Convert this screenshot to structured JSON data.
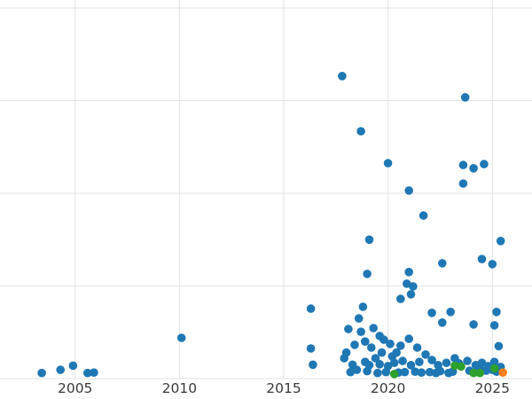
{
  "chart_data": {
    "type": "scatter",
    "title": "",
    "xlabel": "",
    "ylabel": "",
    "legend": "none",
    "grid": true,
    "xlim": [
      2001.4,
      2026.9
    ],
    "ylim": [
      0,
      80
    ],
    "x_ticks": [
      2005,
      2010,
      2015,
      2020,
      2025
    ],
    "x_tick_labels": [
      "2005",
      "2010",
      "2015",
      "2020",
      "2025"
    ],
    "y_gridlines": [
      0,
      20,
      40,
      60,
      80
    ],
    "series": [
      {
        "name": "series-blue",
        "color": "#1f77b4",
        "points": [
          [
            2003.4,
            1.2
          ],
          [
            2004.3,
            1.9
          ],
          [
            2004.9,
            2.8
          ],
          [
            2005.6,
            1.2
          ],
          [
            2005.9,
            1.3
          ],
          [
            2010.1,
            8.8
          ],
          [
            2016.3,
            15.1
          ],
          [
            2016.3,
            6.5
          ],
          [
            2016.4,
            3.0
          ],
          [
            2017.8,
            65.3
          ],
          [
            2017.9,
            4.4
          ],
          [
            2018.0,
            5.6
          ],
          [
            2018.1,
            10.7
          ],
          [
            2018.2,
            1.4
          ],
          [
            2018.3,
            3.0
          ],
          [
            2018.4,
            7.3
          ],
          [
            2018.5,
            1.9
          ],
          [
            2018.6,
            13.0
          ],
          [
            2018.7,
            53.4
          ],
          [
            2018.7,
            10.1
          ],
          [
            2018.8,
            15.5
          ],
          [
            2018.9,
            8.0
          ],
          [
            2018.9,
            3.6
          ],
          [
            2019.0,
            22.6
          ],
          [
            2019.0,
            1.6
          ],
          [
            2019.1,
            30.0
          ],
          [
            2019.1,
            2.9
          ],
          [
            2019.2,
            6.7
          ],
          [
            2019.3,
            10.9
          ],
          [
            2019.4,
            4.4
          ],
          [
            2019.5,
            1.2
          ],
          [
            2019.6,
            9.2
          ],
          [
            2019.6,
            3.1
          ],
          [
            2019.7,
            5.6
          ],
          [
            2019.8,
            8.4
          ],
          [
            2019.9,
            1.4
          ],
          [
            2020.0,
            46.5
          ],
          [
            2020.0,
            2.7
          ],
          [
            2020.1,
            7.5
          ],
          [
            2020.2,
            4.8
          ],
          [
            2020.3,
            3.4
          ],
          [
            2020.4,
            5.6
          ],
          [
            2020.5,
            1.3
          ],
          [
            2020.6,
            17.2
          ],
          [
            2020.6,
            7.1
          ],
          [
            2020.7,
            3.8
          ],
          [
            2020.8,
            1.4
          ],
          [
            2020.9,
            20.5
          ],
          [
            2021.0,
            40.6
          ],
          [
            2021.0,
            23.0
          ],
          [
            2021.0,
            8.6
          ],
          [
            2021.1,
            18.2
          ],
          [
            2021.1,
            2.9
          ],
          [
            2021.2,
            19.9
          ],
          [
            2021.3,
            1.5
          ],
          [
            2021.4,
            6.7
          ],
          [
            2021.5,
            3.6
          ],
          [
            2021.6,
            1.3
          ],
          [
            2021.7,
            35.2
          ],
          [
            2021.8,
            5.2
          ],
          [
            2022.0,
            1.4
          ],
          [
            2022.1,
            14.2
          ],
          [
            2022.1,
            4.0
          ],
          [
            2022.3,
            1.2
          ],
          [
            2022.4,
            2.9
          ],
          [
            2022.5,
            1.6
          ],
          [
            2022.6,
            24.9
          ],
          [
            2022.6,
            12.1
          ],
          [
            2022.8,
            3.4
          ],
          [
            2022.9,
            1.2
          ],
          [
            2023.0,
            14.4
          ],
          [
            2023.1,
            1.5
          ],
          [
            2023.2,
            4.4
          ],
          [
            2023.4,
            3.3
          ],
          [
            2023.6,
            46.1
          ],
          [
            2023.6,
            42.1
          ],
          [
            2023.7,
            60.7
          ],
          [
            2023.8,
            3.8
          ],
          [
            2023.9,
            1.7
          ],
          [
            2024.1,
            45.4
          ],
          [
            2024.1,
            11.7
          ],
          [
            2024.2,
            2.9
          ],
          [
            2024.4,
            2.1
          ],
          [
            2024.5,
            25.8
          ],
          [
            2024.5,
            3.4
          ],
          [
            2024.6,
            46.3
          ],
          [
            2024.7,
            1.7
          ],
          [
            2024.8,
            2.7
          ],
          [
            2025.0,
            24.7
          ],
          [
            2025.0,
            1.9
          ],
          [
            2025.1,
            11.5
          ],
          [
            2025.1,
            3.6
          ],
          [
            2025.2,
            14.4
          ],
          [
            2025.2,
            1.5
          ],
          [
            2025.3,
            7.0
          ],
          [
            2025.4,
            29.7
          ],
          [
            2025.4,
            2.5
          ]
        ]
      },
      {
        "name": "series-green",
        "color": "#2ca02c",
        "points": [
          [
            2020.3,
            1.0
          ],
          [
            2023.2,
            2.8
          ],
          [
            2023.5,
            2.6
          ],
          [
            2024.1,
            1.2
          ],
          [
            2024.4,
            1.2
          ],
          [
            2025.1,
            2.2
          ]
        ]
      },
      {
        "name": "series-orange",
        "color": "#ff7f0e",
        "points": [
          [
            2025.5,
            1.3
          ]
        ]
      }
    ]
  },
  "style": {
    "background_color": "#ffffff",
    "gridline_color": "#e3e3e3",
    "tick_label_color": "#3a3a3a"
  }
}
